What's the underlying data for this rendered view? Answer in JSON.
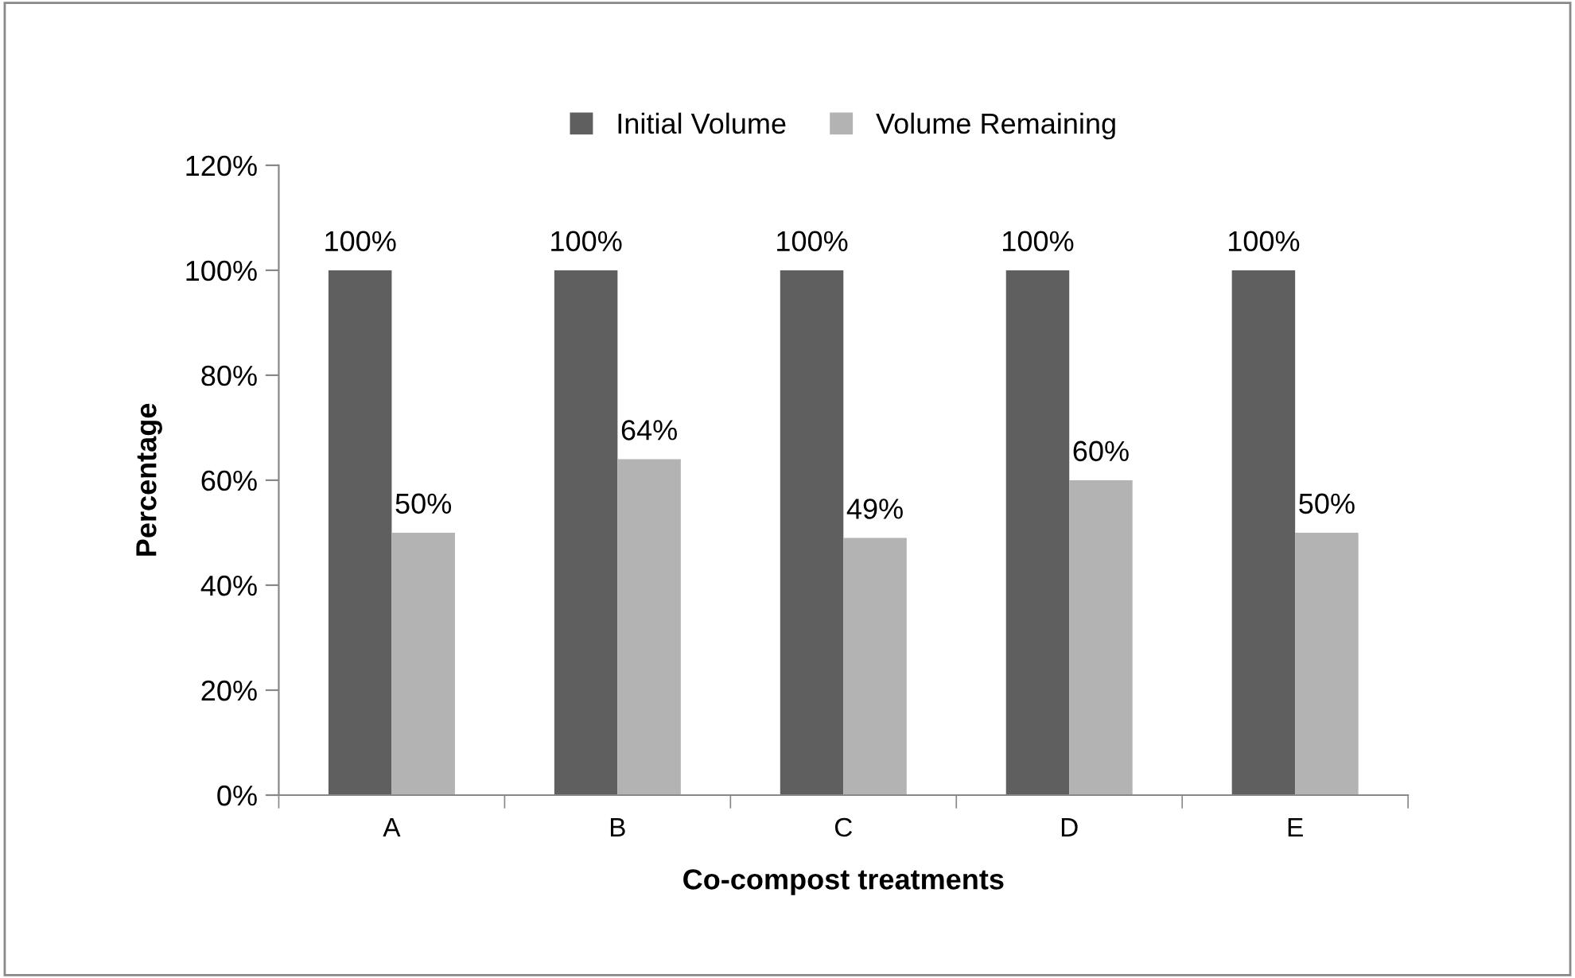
{
  "chart_data": {
    "type": "bar",
    "xlabel": "Co-compost treatments",
    "ylabel": "Percentage",
    "categories": [
      "A",
      "B",
      "C",
      "D",
      "E"
    ],
    "series": [
      {
        "name": "Initial Volume",
        "color": "#5f5f5f",
        "values": [
          100,
          100,
          100,
          100,
          100
        ],
        "value_labels": [
          "100%",
          "100%",
          "100%",
          "100%",
          "100%"
        ]
      },
      {
        "name": "Volume Remaining",
        "color": "#b3b3b3",
        "values": [
          50,
          64,
          49,
          60,
          50
        ],
        "value_labels": [
          "50%",
          "64%",
          "49%",
          "60%",
          "50%"
        ]
      }
    ],
    "ylim": [
      0,
      120
    ],
    "yticks": [
      {
        "value": 0,
        "label": "0%"
      },
      {
        "value": 20,
        "label": "20%"
      },
      {
        "value": 40,
        "label": "40%"
      },
      {
        "value": 60,
        "label": "60%"
      },
      {
        "value": 80,
        "label": "80%"
      },
      {
        "value": 100,
        "label": "100%"
      },
      {
        "value": 120,
        "label": "120%"
      }
    ],
    "grid": false,
    "legend": "top"
  }
}
